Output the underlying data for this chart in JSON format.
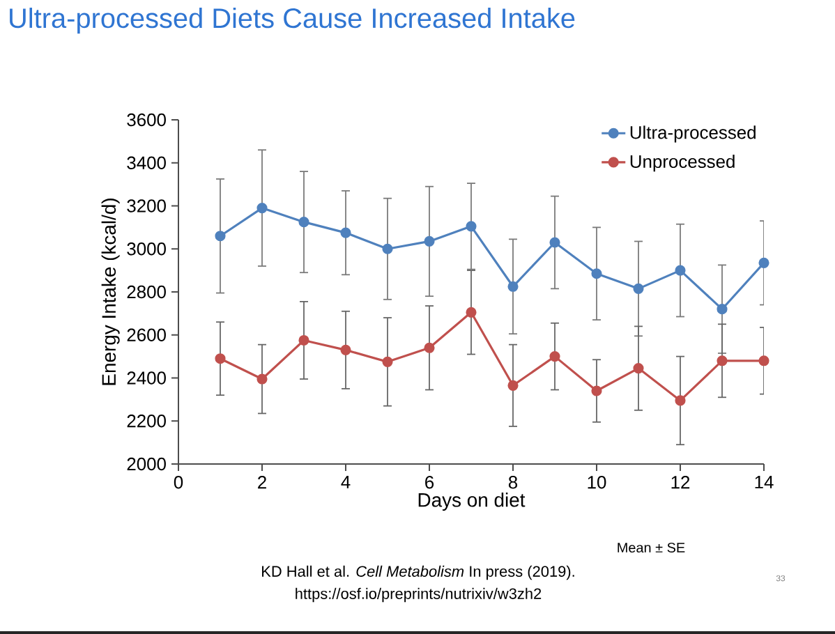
{
  "chart_data": {
    "type": "line",
    "title": "Ultra-processed Diets Cause Increased Intake",
    "xlabel": "Days on diet",
    "ylabel": "Energy Intake (kcal/d)",
    "x": [
      1,
      2,
      3,
      4,
      5,
      6,
      7,
      8,
      9,
      10,
      11,
      12,
      13,
      14
    ],
    "series": [
      {
        "name": "Ultra-processed",
        "color": "#4f81bd",
        "values": [
          3060,
          3190,
          3125,
          3075,
          3000,
          3035,
          3105,
          2825,
          3030,
          2885,
          2815,
          2900,
          2720,
          2935
        ],
        "errors": [
          265,
          270,
          235,
          195,
          235,
          255,
          200,
          220,
          215,
          215,
          220,
          215,
          205,
          195
        ]
      },
      {
        "name": "Unprocessed",
        "color": "#c0504d",
        "values": [
          2490,
          2395,
          2575,
          2530,
          2475,
          2540,
          2705,
          2365,
          2500,
          2340,
          2445,
          2295,
          2480,
          2480
        ],
        "errors": [
          170,
          160,
          180,
          180,
          205,
          195,
          195,
          190,
          155,
          145,
          195,
          205,
          170,
          155
        ]
      }
    ],
    "xlim": [
      0,
      14
    ],
    "xticks": [
      0,
      2,
      4,
      6,
      8,
      10,
      12,
      14
    ],
    "ylim": [
      2000,
      3600
    ],
    "yticks": [
      2000,
      2200,
      2400,
      2600,
      2800,
      3000,
      3200,
      3400,
      3600
    ],
    "marker": "circle",
    "line_style": "solid",
    "legend": "top right",
    "grid": false,
    "annotations": [
      "Mean ± SE",
      "KD Hall et al. *Cell Metabolism* In press (2019).",
      "https://osf.io/preprints/nutrixiv/w3zh2",
      "33"
    ]
  }
}
